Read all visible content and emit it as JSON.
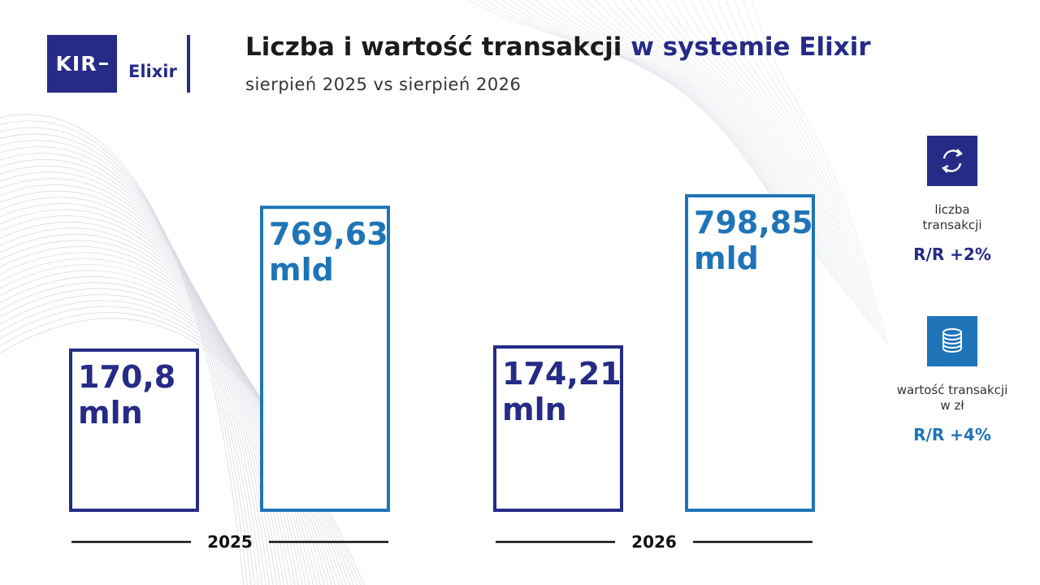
{
  "logo": {
    "kir": "KIR",
    "elixir": "Elixir"
  },
  "header": {
    "title_main": "Liczba i wartość transakcji",
    "title_accent": "w systemie Elixir",
    "subtitle": "sierpień 2025 vs sierpień 2026"
  },
  "colors": {
    "navy": "#252b86",
    "blue": "#1f74b8"
  },
  "chart_data": {
    "type": "bar",
    "title": "Liczba i wartość transakcji w systemie Elixir",
    "categories": [
      "2025",
      "2026"
    ],
    "series": [
      {
        "name": "liczba transakcji",
        "unit": "mln",
        "values": [
          170.8,
          174.21
        ],
        "labels": [
          "170,8",
          "174,21"
        ],
        "color": "#252b86"
      },
      {
        "name": "wartość transakcji w zł",
        "unit": "mld",
        "values": [
          769.63,
          798.85
        ],
        "labels": [
          "769,63",
          "798,85"
        ],
        "color": "#1f74b8"
      }
    ]
  },
  "side_panel": {
    "count": {
      "icon": "exchange-arrows-icon",
      "label_line1": "liczba",
      "label_line2": "transakcji",
      "value": "R/R +2%"
    },
    "value": {
      "icon": "coins-stack-icon",
      "label_line1": "wartość transakcji",
      "label_line2": "w zł",
      "value": "R/R +4%"
    }
  }
}
